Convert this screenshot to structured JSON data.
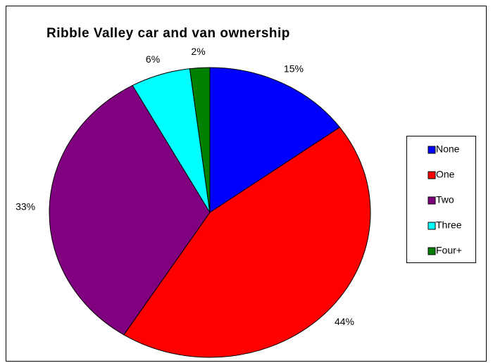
{
  "chart_data": {
    "type": "pie",
    "title": "Ribble Valley car and van ownership",
    "categories": [
      "None",
      "One",
      "Two",
      "Three",
      "Four+"
    ],
    "values": [
      15,
      44,
      33,
      6,
      2
    ],
    "value_labels": [
      "15%",
      "44%",
      "33%",
      "6%",
      "2%"
    ],
    "colors": [
      "#0000ff",
      "#ff0000",
      "#800080",
      "#00ffff",
      "#008000"
    ],
    "legend": "right"
  }
}
